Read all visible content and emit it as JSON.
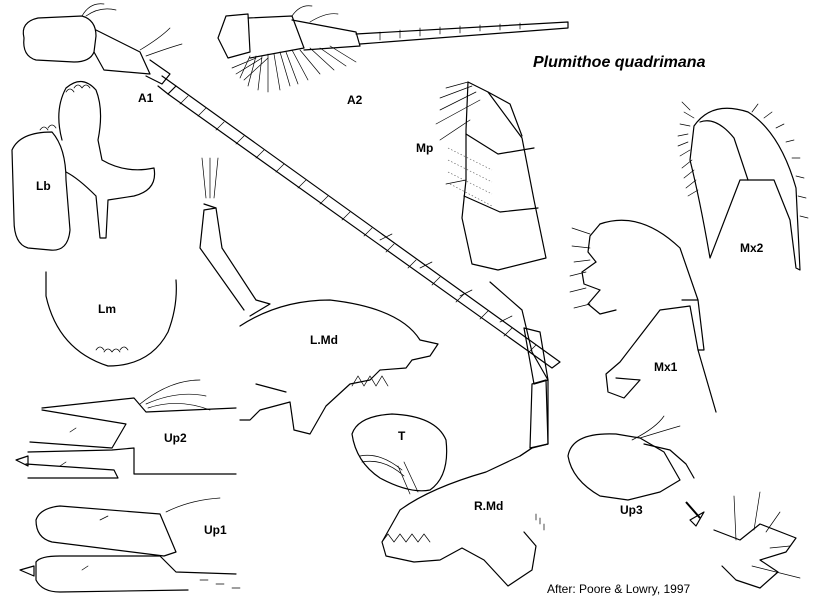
{
  "title": "Plumithoe quadrimana",
  "credit": "After: Poore & Lowry, 1997",
  "labels": {
    "a1": "A1",
    "a2": "A2",
    "mp": "Mp",
    "lb": "Lb",
    "lm": "Lm",
    "lmd": "L.Md",
    "mx1": "Mx1",
    "mx2": "Mx2",
    "up2": "Up2",
    "up1": "Up1",
    "up3": "Up3",
    "t": "T",
    "rmd": "R.Md"
  },
  "colors": {
    "ink": "#000000",
    "background": "#ffffff"
  }
}
